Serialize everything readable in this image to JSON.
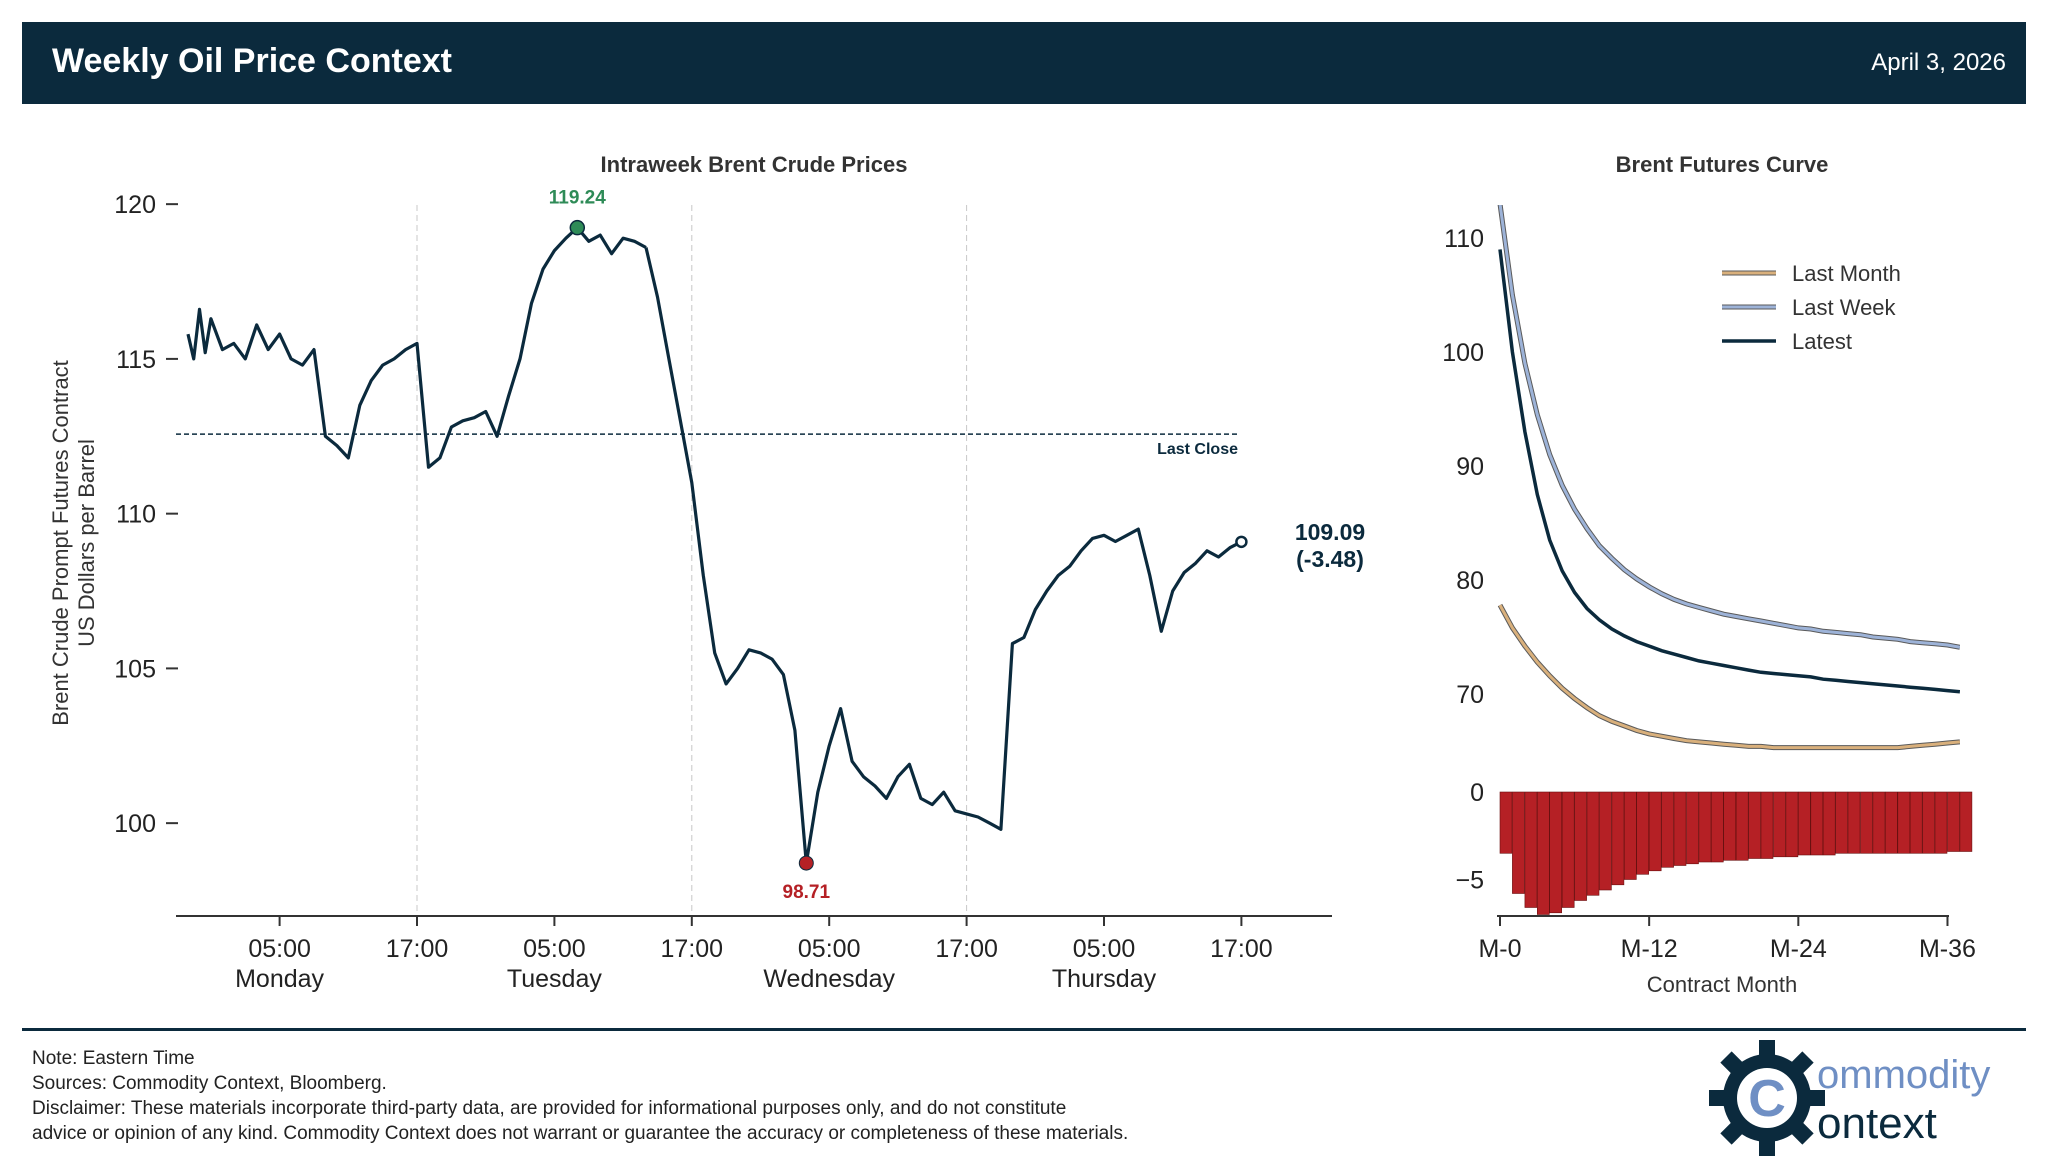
{
  "header": {
    "title": "Weekly Oil Price Context",
    "date": "April 3, 2026"
  },
  "colors": {
    "navy": "#0b2a3d",
    "latest": "#0b2a3d",
    "last_week": "#9db3d8",
    "last_month": "#d9b07c",
    "bar_fill": "#b52025",
    "high": "#2e8b57",
    "low": "#b52025"
  },
  "chart_data": [
    {
      "type": "line",
      "title": "Intraweek Brent Crude Prices",
      "ylabel_line1": "Brent Crude Prompt Futures Contract",
      "ylabel_line2": "US Dollars per Barrel",
      "ylim": [
        97,
        120.5
      ],
      "yticks": [
        "100",
        "105",
        "110",
        "115",
        "120"
      ],
      "x_ticks": [
        {
          "time": "05:00",
          "day": "Monday"
        },
        {
          "time": "17:00",
          "day": ""
        },
        {
          "time": "05:00",
          "day": "Tuesday"
        },
        {
          "time": "17:00",
          "day": ""
        },
        {
          "time": "05:00",
          "day": "Wednesday"
        },
        {
          "time": "17:00",
          "day": ""
        },
        {
          "time": "05:00",
          "day": "Thursday"
        },
        {
          "time": "17:00",
          "day": ""
        }
      ],
      "x_hours": [
        5,
        17,
        29,
        41,
        53,
        65,
        77,
        89
      ],
      "vlines_hours": [
        17,
        41,
        65
      ],
      "grid": "vertical dashed",
      "last_close": 112.57,
      "last_close_label": "Last Close",
      "high": {
        "value": 119.24,
        "label": "119.24"
      },
      "low": {
        "value": 98.71,
        "label": "98.71"
      },
      "last": {
        "value": 109.09,
        "label": "109.09",
        "change": "(-3.48)"
      },
      "series": [
        {
          "x": [
            -3,
            -2.5,
            -2,
            -1.5,
            -1,
            0,
            1,
            2,
            3,
            4,
            5,
            6,
            7,
            8,
            9,
            10,
            11,
            12,
            13,
            14,
            15,
            16,
            17,
            18,
            19,
            20,
            21,
            22,
            23,
            24,
            25,
            26,
            27,
            28,
            29,
            30,
            31,
            32,
            33,
            34,
            35,
            36,
            37
          ],
          "y": [
            115.8,
            115.0,
            116.6,
            115.2,
            116.3,
            115.3,
            115.5,
            115.0,
            116.1,
            115.3,
            115.8,
            115.0,
            114.8,
            115.3,
            112.5,
            112.2,
            111.8,
            113.5,
            114.3,
            114.8,
            115.0,
            115.3,
            115.5,
            111.5,
            111.8,
            112.8,
            113.0,
            113.1,
            113.3,
            112.5,
            113.8,
            115.0,
            116.8,
            117.9,
            118.5,
            118.9,
            119.24,
            118.8,
            119.0,
            118.4,
            118.9,
            118.8,
            118.6
          ]
        },
        {
          "x": [
            37,
            38,
            39,
            40,
            41,
            42,
            43,
            44,
            45,
            46,
            47,
            48,
            49,
            50,
            51,
            52,
            53,
            54,
            55,
            56,
            57,
            58,
            59,
            60,
            61,
            62,
            63,
            64,
            65,
            66,
            67,
            68,
            69,
            70,
            71,
            72,
            73,
            74,
            75,
            76,
            77,
            78,
            79,
            80,
            81,
            82,
            83,
            84,
            85,
            86,
            87,
            88,
            89
          ],
          "y": [
            118.6,
            117.0,
            115.0,
            113.0,
            111.0,
            108.0,
            105.5,
            104.5,
            105.0,
            105.6,
            105.5,
            105.3,
            104.8,
            103.0,
            98.71,
            101.0,
            102.5,
            103.7,
            102.0,
            101.5,
            101.2,
            100.8,
            101.5,
            101.9,
            100.8,
            100.6,
            101.0,
            100.4,
            100.3,
            100.2,
            100.0,
            99.8,
            105.8,
            106.0,
            106.9,
            107.5,
            108.0,
            108.3,
            108.8,
            109.2,
            109.3,
            109.1,
            109.3,
            109.5,
            108.0,
            106.2,
            107.5,
            108.1,
            108.4,
            108.8,
            108.6,
            108.9,
            109.09
          ]
        }
      ]
    },
    {
      "type": "line",
      "title": "Brent Futures Curve",
      "xlabel": "Contract Month",
      "x_ticks": [
        "M-0",
        "M-12",
        "M-24",
        "M-36"
      ],
      "x_tick_values": [
        0,
        12,
        24,
        36
      ],
      "yticks": [
        "70",
        "80",
        "90",
        "100",
        "110"
      ],
      "ylim": [
        62,
        113.5
      ],
      "legend": "upper-right",
      "x": [
        0,
        1,
        2,
        3,
        4,
        5,
        6,
        7,
        8,
        9,
        10,
        11,
        12,
        13,
        14,
        15,
        16,
        17,
        18,
        19,
        20,
        21,
        22,
        23,
        24,
        25,
        26,
        27,
        28,
        29,
        30,
        31,
        32,
        33,
        34,
        35,
        36,
        37
      ],
      "series": [
        {
          "name": "Last Month",
          "color_key": "last_month",
          "values": [
            77.8,
            75.8,
            74.2,
            72.8,
            71.6,
            70.5,
            69.6,
            68.8,
            68.1,
            67.6,
            67.2,
            66.8,
            66.5,
            66.3,
            66.1,
            65.9,
            65.8,
            65.7,
            65.6,
            65.5,
            65.4,
            65.4,
            65.3,
            65.3,
            65.3,
            65.3,
            65.3,
            65.3,
            65.3,
            65.3,
            65.3,
            65.3,
            65.3,
            65.4,
            65.5,
            65.6,
            65.7,
            65.8
          ]
        },
        {
          "name": "Last Week",
          "color_key": "last_week",
          "values": [
            113.0,
            105.0,
            99.0,
            94.5,
            91.0,
            88.3,
            86.2,
            84.5,
            83.0,
            81.9,
            80.9,
            80.1,
            79.4,
            78.8,
            78.3,
            77.9,
            77.6,
            77.3,
            77.0,
            76.8,
            76.6,
            76.4,
            76.2,
            76.0,
            75.8,
            75.7,
            75.5,
            75.4,
            75.3,
            75.2,
            75.0,
            74.9,
            74.8,
            74.6,
            74.5,
            74.4,
            74.3,
            74.1
          ]
        },
        {
          "name": "Latest",
          "color_key": "latest",
          "values": [
            109.0,
            100.0,
            93.0,
            87.5,
            83.5,
            80.8,
            78.9,
            77.5,
            76.5,
            75.7,
            75.1,
            74.6,
            74.2,
            73.8,
            73.5,
            73.2,
            72.9,
            72.7,
            72.5,
            72.3,
            72.1,
            71.9,
            71.8,
            71.7,
            71.6,
            71.5,
            71.3,
            71.2,
            71.1,
            71.0,
            70.9,
            70.8,
            70.7,
            70.6,
            70.5,
            70.4,
            70.3,
            70.2
          ]
        }
      ]
    },
    {
      "type": "bar",
      "yticks": [
        "0",
        "−5"
      ],
      "ylim": [
        -7.0,
        0.8
      ],
      "x": [
        0,
        1,
        2,
        3,
        4,
        5,
        6,
        7,
        8,
        9,
        10,
        11,
        12,
        13,
        14,
        15,
        16,
        17,
        18,
        19,
        20,
        21,
        22,
        23,
        24,
        25,
        26,
        27,
        28,
        29,
        30,
        31,
        32,
        33,
        34,
        35,
        36,
        37
      ],
      "values": [
        -3.5,
        -5.8,
        -6.6,
        -7.0,
        -6.9,
        -6.6,
        -6.2,
        -5.9,
        -5.6,
        -5.3,
        -5.0,
        -4.7,
        -4.5,
        -4.3,
        -4.2,
        -4.1,
        -4.0,
        -4.0,
        -3.9,
        -3.9,
        -3.8,
        -3.8,
        -3.7,
        -3.7,
        -3.6,
        -3.6,
        -3.6,
        -3.5,
        -3.5,
        -3.5,
        -3.5,
        -3.5,
        -3.5,
        -3.5,
        -3.5,
        -3.5,
        -3.4,
        -3.4
      ]
    }
  ],
  "footer": {
    "note": "Note: Eastern Time",
    "sources": "Sources: Commodity Context, Bloomberg.",
    "disclaimer_1": "Disclaimer: These materials incorporate third-party data, are provided for informational purposes only, and do not constitute",
    "disclaimer_2": "advice or opinion of any kind. Commodity Context does not warrant or guarantee the accuracy or completeness of these materials."
  },
  "logo": {
    "word_1": "ommodity",
    "word_2": "ontext",
    "icon": "gear-c-logo-icon"
  }
}
